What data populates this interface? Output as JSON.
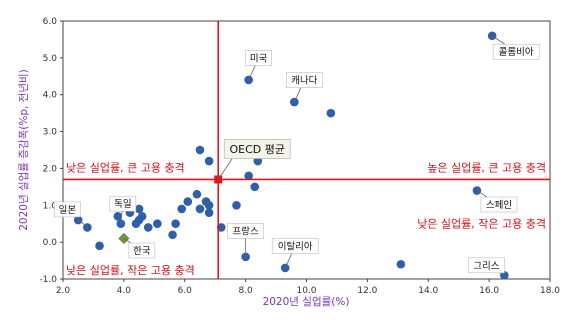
{
  "chart_data": {
    "type": "scatter",
    "xlabel": "2020년 실업률(%)",
    "ylabel": "2020년 실업률 증감폭(%p, 전년비)",
    "xlim": [
      2.0,
      18.0
    ],
    "ylim": [
      -1.0,
      6.0
    ],
    "xticks": [
      "2.0",
      "4.0",
      "6.0",
      "8.0",
      "10.0",
      "12.0",
      "14.0",
      "16.0",
      "18.0"
    ],
    "yticks": [
      "-1.0",
      "0.0",
      "1.0",
      "2.0",
      "3.0",
      "4.0",
      "5.0",
      "6.0"
    ],
    "grid": false,
    "colors": {
      "points": "#2e5fa8",
      "reference": "#e2151f",
      "korea": "#6e9a3c",
      "axis_title": "#7a35b8",
      "quadrant_text": "#d0111b"
    },
    "points": [
      {
        "x": 16.1,
        "y": 5.6,
        "label": "콜롬비아"
      },
      {
        "x": 8.1,
        "y": 4.4,
        "label": "미국"
      },
      {
        "x": 9.6,
        "y": 3.8,
        "label": "캐나다"
      },
      {
        "x": 10.8,
        "y": 3.5,
        "label": null
      },
      {
        "x": 6.5,
        "y": 2.5,
        "label": null
      },
      {
        "x": 6.8,
        "y": 2.2,
        "label": null
      },
      {
        "x": 8.4,
        "y": 2.2,
        "label": null
      },
      {
        "x": 8.1,
        "y": 1.8,
        "label": null
      },
      {
        "x": 8.3,
        "y": 1.5,
        "label": null
      },
      {
        "x": 15.6,
        "y": 1.4,
        "label": "스페인"
      },
      {
        "x": 6.4,
        "y": 1.3,
        "label": null
      },
      {
        "x": 6.7,
        "y": 1.1,
        "label": null
      },
      {
        "x": 6.8,
        "y": 1.0,
        "label": null
      },
      {
        "x": 6.1,
        "y": 1.1,
        "label": null
      },
      {
        "x": 6.5,
        "y": 0.9,
        "label": null
      },
      {
        "x": 6.8,
        "y": 0.8,
        "label": null
      },
      {
        "x": 7.7,
        "y": 1.0,
        "label": null
      },
      {
        "x": 5.9,
        "y": 0.9,
        "label": null
      },
      {
        "x": 4.5,
        "y": 0.9,
        "label": null
      },
      {
        "x": 4.2,
        "y": 0.8,
        "label": null
      },
      {
        "x": 4.6,
        "y": 0.7,
        "label": null
      },
      {
        "x": 4.5,
        "y": 0.6,
        "label": null
      },
      {
        "x": 3.8,
        "y": 0.7,
        "label": null
      },
      {
        "x": 3.9,
        "y": 0.5,
        "label": "독일"
      },
      {
        "x": 4.4,
        "y": 0.5,
        "label": null
      },
      {
        "x": 4.8,
        "y": 0.4,
        "label": null
      },
      {
        "x": 5.1,
        "y": 0.5,
        "label": null
      },
      {
        "x": 5.7,
        "y": 0.5,
        "label": null
      },
      {
        "x": 5.6,
        "y": 0.2,
        "label": null
      },
      {
        "x": 7.2,
        "y": 0.4,
        "label": null
      },
      {
        "x": 2.5,
        "y": 0.6,
        "label": null
      },
      {
        "x": 2.8,
        "y": 0.4,
        "label": "일본"
      },
      {
        "x": 3.2,
        "y": -0.1,
        "label": null
      },
      {
        "x": 8.0,
        "y": -0.4,
        "label": "프랑스"
      },
      {
        "x": 9.3,
        "y": -0.7,
        "label": "이탈리아"
      },
      {
        "x": 13.1,
        "y": -0.6,
        "label": null
      },
      {
        "x": 16.5,
        "y": -0.9,
        "label": "그리스"
      }
    ],
    "korea": {
      "x": 4.0,
      "y": 0.1,
      "label": "한국"
    },
    "oecd": {
      "x": 7.1,
      "y": 1.7,
      "label": "OECD 평균"
    },
    "quadrants": {
      "top_left": "낮은 실업률, 큰 고용 충격",
      "top_right": "높은 실업률, 큰 고용 충격",
      "bottom_left": "낮은 실업률, 작은 고용 충격",
      "bottom_right": "낮은 실업률, 작은 고용 충격"
    }
  }
}
